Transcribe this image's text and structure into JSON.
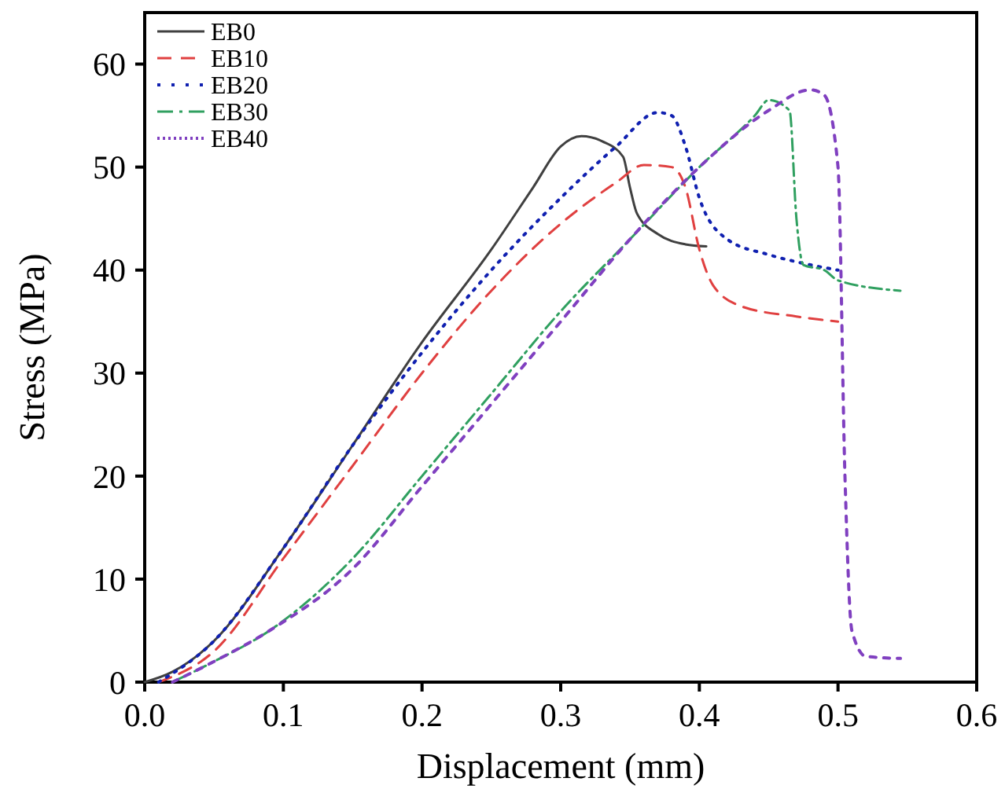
{
  "chart_data": {
    "type": "line",
    "xlabel": "Displacement (mm)",
    "ylabel": "Stress (MPa)",
    "xlim": [
      0,
      0.6
    ],
    "ylim": [
      0,
      65
    ],
    "xticks": [
      {
        "value": 0,
        "label": "0.0"
      },
      0.1,
      0.2,
      0.3,
      0.4,
      0.5,
      0.6
    ],
    "yticks": [
      0,
      10,
      20,
      30,
      40,
      50,
      60
    ],
    "grid": false,
    "legend": "top left",
    "series": [
      {
        "name": "EB0",
        "color": "#404040",
        "line_style": "solid",
        "x": [
          0,
          0.02,
          0.05,
          0.1,
          0.15,
          0.2,
          0.25,
          0.28,
          0.3,
          0.315,
          0.33,
          0.345,
          0.35,
          0.355,
          0.37,
          0.39,
          0.405
        ],
        "values": [
          0,
          1,
          4,
          13,
          23,
          33,
          42,
          48,
          52,
          53,
          52.5,
          51,
          48,
          45.5,
          43.5,
          42.5,
          42.3
        ]
      },
      {
        "name": "EB10",
        "color": "#e04040",
        "line_style": "dashed",
        "x": [
          0.01,
          0.05,
          0.1,
          0.15,
          0.2,
          0.25,
          0.3,
          0.34,
          0.36,
          0.38,
          0.39,
          0.4,
          0.41,
          0.43,
          0.47,
          0.5
        ],
        "values": [
          0,
          3,
          12,
          21,
          30,
          38,
          44.5,
          48.5,
          50.2,
          50,
          48,
          42,
          38.5,
          36.5,
          35.5,
          35
        ]
      },
      {
        "name": "EB20",
        "color": "#1020b0",
        "line_style": "dotted",
        "x": [
          0.01,
          0.05,
          0.1,
          0.15,
          0.2,
          0.25,
          0.3,
          0.34,
          0.37,
          0.38,
          0.39,
          0.4,
          0.42,
          0.45,
          0.47,
          0.5
        ],
        "values": [
          0,
          4,
          13,
          23,
          32,
          40,
          47,
          52,
          55.3,
          55,
          52,
          47,
          43,
          41.5,
          40.8,
          40
        ]
      },
      {
        "name": "EB30",
        "color": "#30a060",
        "line_style": "dashdot",
        "x": [
          0.02,
          0.05,
          0.09,
          0.15,
          0.2,
          0.25,
          0.3,
          0.35,
          0.4,
          0.44,
          0.45,
          0.465,
          0.47,
          0.475,
          0.49,
          0.5,
          0.545
        ],
        "values": [
          0,
          2,
          5,
          12,
          20,
          28,
          36,
          43,
          50,
          55,
          56.5,
          55.5,
          45,
          40.5,
          40,
          39,
          38
        ]
      },
      {
        "name": "EB40",
        "color": "#8040c0",
        "line_style": "dotted",
        "x": [
          0.02,
          0.05,
          0.09,
          0.15,
          0.2,
          0.25,
          0.3,
          0.35,
          0.4,
          0.45,
          0.48,
          0.49,
          0.5,
          0.505,
          0.51,
          0.52,
          0.545
        ],
        "values": [
          0,
          2,
          5,
          11,
          19,
          27,
          35,
          43,
          50,
          55.5,
          57.5,
          57,
          50,
          20,
          5,
          2.5,
          2.3
        ]
      }
    ]
  }
}
